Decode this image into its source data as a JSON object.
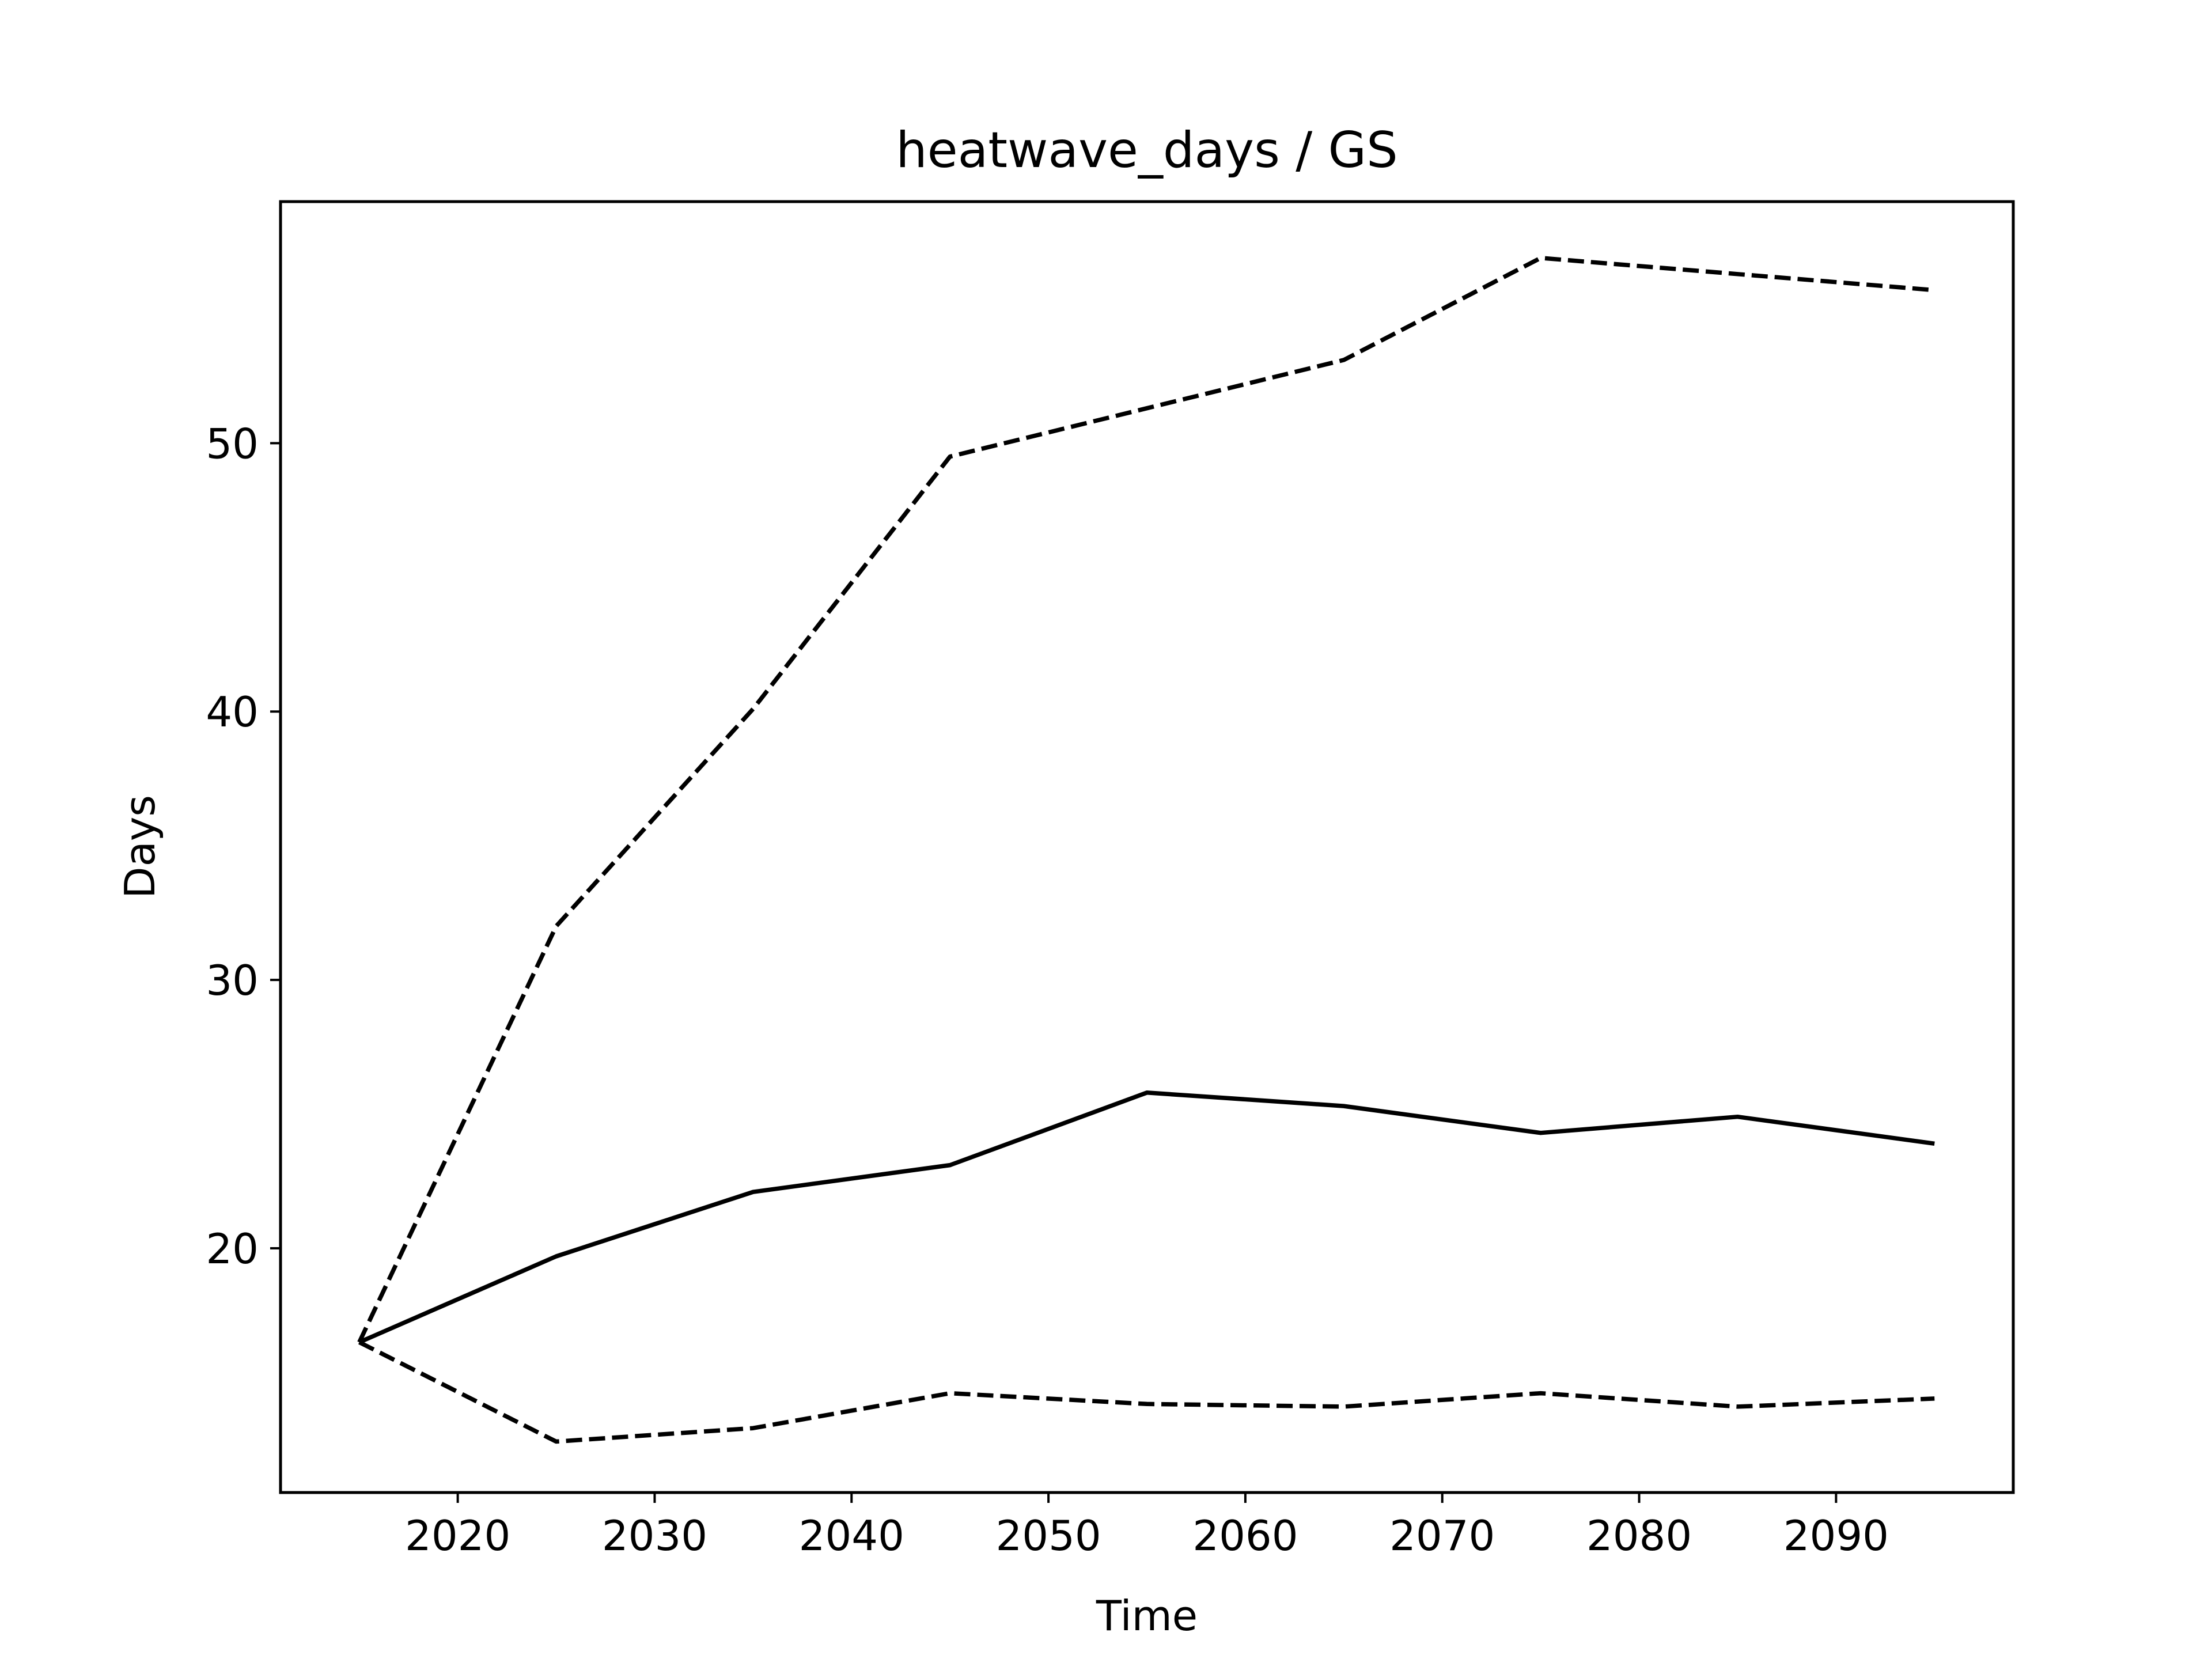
{
  "chart_data": {
    "type": "line",
    "title": "heatwave_days / GS",
    "xlabel": "Time",
    "ylabel": "Days",
    "xlim": [
      2011,
      2099
    ],
    "ylim": [
      10.9,
      59
    ],
    "xticks": [
      2020,
      2030,
      2040,
      2050,
      2060,
      2070,
      2080,
      2090
    ],
    "yticks": [
      20,
      30,
      40,
      50
    ],
    "grid": false,
    "x": [
      2015,
      2025,
      2035,
      2045,
      2055,
      2065,
      2075,
      2085,
      2095
    ],
    "series": [
      {
        "style": "solid",
        "color": "#000000",
        "values": [
          16.5,
          19.7,
          22.1,
          23.1,
          25.8,
          25.3,
          24.3,
          24.9,
          23.9
        ]
      },
      {
        "style": "dashed",
        "color": "#000000",
        "values": [
          16.5,
          32.0,
          40.1,
          49.5,
          51.3,
          53.1,
          56.9,
          56.3,
          55.7
        ]
      },
      {
        "style": "dashed",
        "color": "#000000",
        "values": [
          16.5,
          12.8,
          13.3,
          14.6,
          14.2,
          14.1,
          14.6,
          14.1,
          14.4
        ]
      }
    ]
  }
}
